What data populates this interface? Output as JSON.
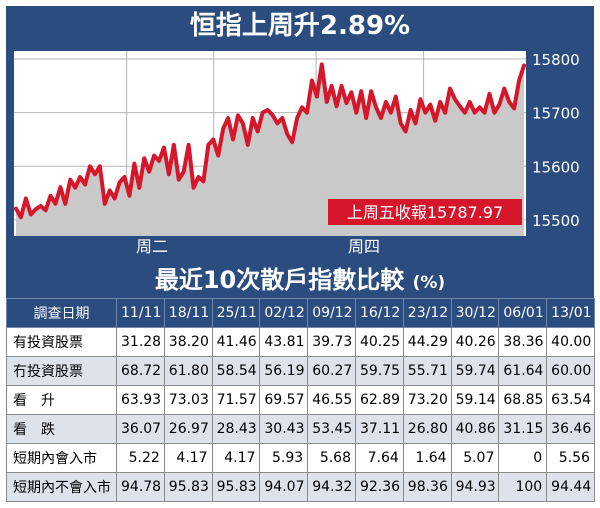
{
  "header_title": "恒指上周升2.89%",
  "table_title": "最近10次散戶指數比較",
  "table_unit": "(%)",
  "colors": {
    "navy": "#2b4c7e",
    "line": "#d6172b",
    "area": "#c9c9c9",
    "label_bg": "#d6172b"
  },
  "chart_data": {
    "type": "area",
    "title": "恒指上周升2.89%",
    "ylim": [
      15470,
      15815
    ],
    "y_ticks": [
      15500,
      15600,
      15700,
      15800
    ],
    "x_labels": [
      "周二",
      "周四"
    ],
    "annotation": "上周五收報15787.97",
    "grid": true,
    "values": [
      15521,
      15505,
      15540,
      15510,
      15520,
      15526,
      15518,
      15545,
      15530,
      15561,
      15530,
      15575,
      15560,
      15580,
      15566,
      15600,
      15585,
      15600,
      15530,
      15555,
      15540,
      15570,
      15580,
      15545,
      15605,
      15560,
      15615,
      15590,
      15620,
      15610,
      15635,
      15585,
      15640,
      15575,
      15590,
      15640,
      15560,
      15580,
      15572,
      15640,
      15650,
      15620,
      15670,
      15690,
      15650,
      15695,
      15680,
      15640,
      15690,
      15665,
      15700,
      15705,
      15696,
      15680,
      15690,
      15660,
      15645,
      15690,
      15710,
      15700,
      15760,
      15730,
      15790,
      15720,
      15750,
      15712,
      15750,
      15718,
      15738,
      15700,
      15740,
      15690,
      15740,
      15710,
      15690,
      15720,
      15700,
      15730,
      15680,
      15665,
      15705,
      15680,
      15725,
      15700,
      15715,
      15685,
      15720,
      15700,
      15745,
      15725,
      15712,
      15700,
      15720,
      15700,
      15710,
      15700,
      15735,
      15700,
      15715,
      15745,
      15720,
      15708,
      15760,
      15788
    ]
  },
  "table": {
    "corner": "調查日期",
    "columns": [
      "11/11",
      "18/11",
      "25/11",
      "02/12",
      "09/12",
      "16/12",
      "23/12",
      "30/12",
      "06/01",
      "13/01"
    ],
    "rows": [
      {
        "label": "有投資股票",
        "values": [
          "31.28",
          "38.20",
          "41.46",
          "43.81",
          "39.73",
          "40.25",
          "44.29",
          "40.26",
          "38.36",
          "40.00"
        ]
      },
      {
        "label": "冇投資股票",
        "values": [
          "68.72",
          "61.80",
          "58.54",
          "56.19",
          "60.27",
          "59.75",
          "55.71",
          "59.74",
          "61.64",
          "60.00"
        ]
      },
      {
        "label": "看　升",
        "values": [
          "63.93",
          "73.03",
          "71.57",
          "69.57",
          "46.55",
          "62.89",
          "73.20",
          "59.14",
          "68.85",
          "63.54"
        ]
      },
      {
        "label": "看　跌",
        "values": [
          "36.07",
          "26.97",
          "28.43",
          "30.43",
          "53.45",
          "37.11",
          "26.80",
          "40.86",
          "31.15",
          "36.46"
        ]
      },
      {
        "label": "短期內會入市",
        "values": [
          "5.22",
          "4.17",
          "4.17",
          "5.93",
          "5.68",
          "7.64",
          "1.64",
          "5.07",
          "0",
          "5.56"
        ]
      },
      {
        "label": "短期內不會入市",
        "values": [
          "94.78",
          "95.83",
          "95.83",
          "94.07",
          "94.32",
          "92.36",
          "98.36",
          "94.93",
          "100",
          "94.44"
        ]
      }
    ]
  }
}
